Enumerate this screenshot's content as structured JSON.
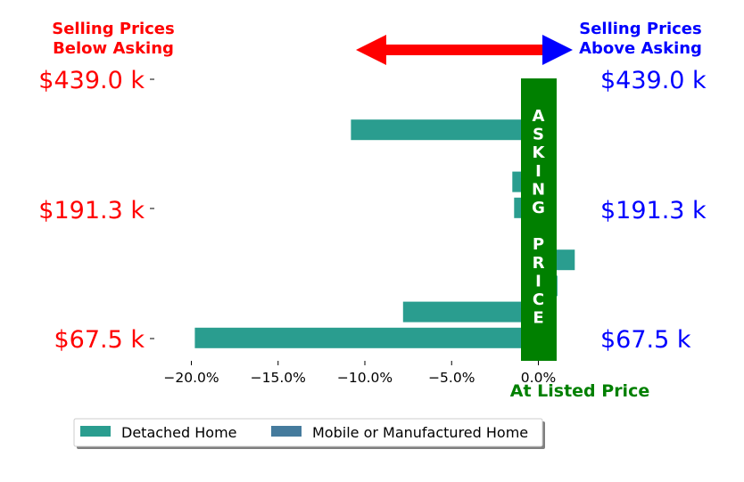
{
  "header": {
    "below_asking_line1": "Selling Prices",
    "below_asking_line2": "Below Asking",
    "above_asking_line1": "Selling Prices",
    "above_asking_line2": "Above Asking"
  },
  "price_labels": {
    "left": [
      "$439.0 k",
      "$191.3 k",
      "$67.5 k"
    ],
    "right": [
      "$439.0 k",
      "$191.3 k",
      "$67.5 k"
    ]
  },
  "asking_price_letters": [
    "A",
    "S",
    "K",
    "I",
    "N",
    "G",
    "",
    "P",
    "R",
    "I",
    "C",
    "E"
  ],
  "at_listed_price_label": "At Listed Price",
  "colors": {
    "detached": "#2a9d8f",
    "mobile": "#457b9d",
    "below": "#ff0000",
    "above": "#0000ff",
    "asking_bar": "#008000"
  },
  "chart_data": {
    "type": "bar",
    "orientation": "horizontal",
    "x_unit": "percent difference from asking price",
    "xlim": [
      -22.5,
      2.3
    ],
    "xticks": [
      -20,
      -15,
      -10,
      -5,
      0
    ],
    "xtick_labels": [
      "−20.0%",
      "−15.0%",
      "−10.0%",
      "−5.0%",
      "0.0%"
    ],
    "series": [
      {
        "name": "Detached Home",
        "color": "#2a9d8f"
      },
      {
        "name": "Mobile or Manufactured Home",
        "color": "#457b9d"
      }
    ],
    "bars": [
      {
        "series": 0,
        "value": -0.7
      },
      {
        "series": 0,
        "value": -10.8
      },
      {
        "series": 1,
        "value": 0.2
      },
      {
        "series": 0,
        "value": -1.5
      },
      {
        "series": 0,
        "value": -1.4
      },
      {
        "series": 0,
        "value": 0.1
      },
      {
        "series": 0,
        "value": 2.1
      },
      {
        "series": 0,
        "value": 1.1
      },
      {
        "series": 0,
        "value": -7.8
      },
      {
        "series": 0,
        "value": -19.8
      }
    ],
    "grid": false,
    "legend_placement": "bottom"
  }
}
